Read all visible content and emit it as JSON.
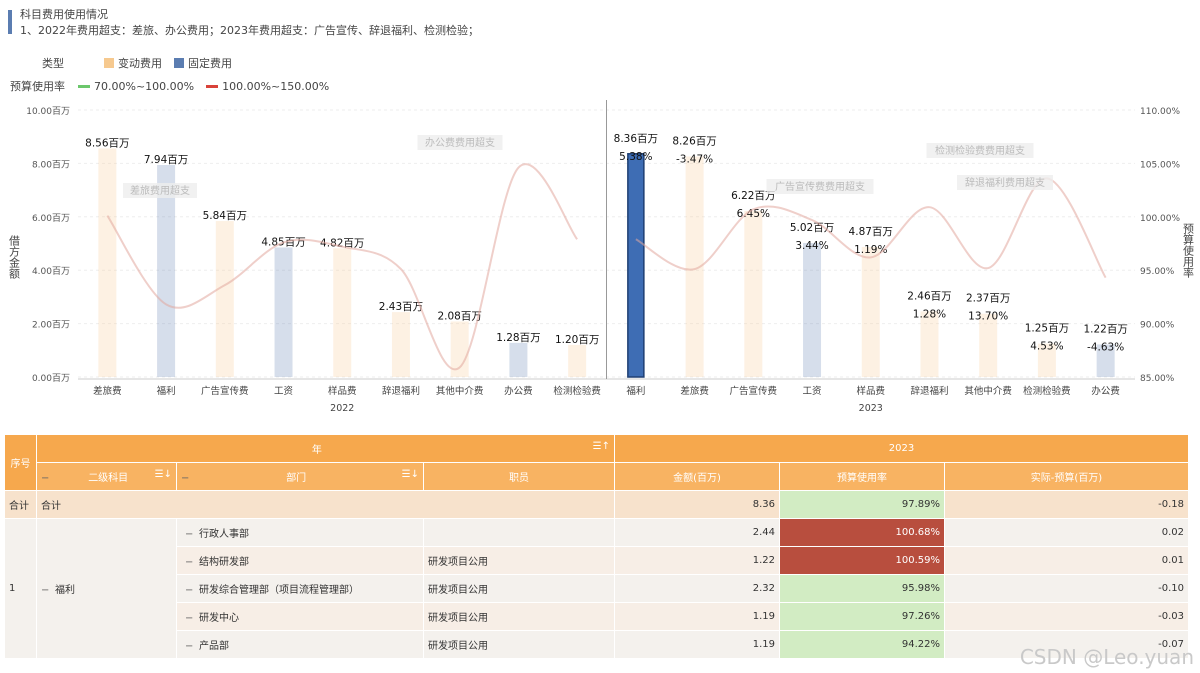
{
  "header": {
    "title": "科目费用使用情况",
    "subtitle": "1、2022年费用超支：差旅、办公费用；2023年费用超支：广告宣传、辞退福利、检测检验；"
  },
  "legend": {
    "type_label": "类型",
    "type_items": [
      {
        "label": "变动费用",
        "color": "#f6c98f"
      },
      {
        "label": "固定费用",
        "color": "#5b7db1"
      }
    ],
    "rate_label": "预算使用率",
    "rate_items": [
      {
        "label": "70.00%~100.00%",
        "color": "#6cc76c"
      },
      {
        "label": "100.00%~150.00%",
        "color": "#d9423a"
      }
    ]
  },
  "chart_data": {
    "type": "bar",
    "ylabel": "借方金额",
    "y2label": "预算使用率",
    "ylim": [
      0,
      10
    ],
    "y2lim": [
      85,
      110
    ],
    "yticks": [
      "0.00百万",
      "2.00百万",
      "4.00百万",
      "6.00百万",
      "8.00百万",
      "10.00百万"
    ],
    "y2ticks": [
      "85.00%",
      "90.00%",
      "95.00%",
      "100.00%",
      "105.00%",
      "110.00%"
    ],
    "groups": [
      {
        "name": "2022",
        "bars": [
          {
            "category": "差旅费",
            "value": 8.56,
            "label": "8.56百万",
            "kind": "变动费用",
            "rate": 100.1
          },
          {
            "category": "福利",
            "value": 7.94,
            "label": "7.94百万",
            "kind": "固定费用",
            "rate": 91.8
          },
          {
            "category": "广告宣传费",
            "value": 5.84,
            "label": "5.84百万",
            "kind": "变动费用",
            "rate": 93.6
          },
          {
            "category": "工资",
            "value": 4.85,
            "label": "4.85百万",
            "kind": "固定费用",
            "rate": 97.6
          },
          {
            "category": "样品费",
            "value": 4.82,
            "label": "4.82百万",
            "kind": "变动费用",
            "rate": 97.2
          },
          {
            "category": "辞退福利",
            "value": 2.43,
            "label": "2.43百万",
            "kind": "变动费用",
            "rate": 95.1
          },
          {
            "category": "其他中介费",
            "value": 2.08,
            "label": "2.08百万",
            "kind": "变动费用",
            "rate": 85.9
          },
          {
            "category": "办公费",
            "value": 1.28,
            "label": "1.28百万",
            "kind": "固定费用",
            "rate": 104.6
          },
          {
            "category": "检测检验费",
            "value": 1.2,
            "label": "1.20百万",
            "kind": "变动费用",
            "rate": 97.9
          }
        ],
        "annotations": [
          "差旅费用超支",
          "办公费费用超支"
        ]
      },
      {
        "name": "2023",
        "bars": [
          {
            "category": "福利",
            "value": 8.36,
            "label": "8.36百万",
            "pct": "5.38%",
            "kind": "固定费用",
            "rate": 97.9,
            "highlight": true
          },
          {
            "category": "差旅费",
            "value": 8.26,
            "label": "8.26百万",
            "pct": "-3.47%",
            "kind": "变动费用",
            "rate": 95.1
          },
          {
            "category": "广告宣传费",
            "value": 6.22,
            "label": "6.22百万",
            "pct": "6.45%",
            "kind": "变动费用",
            "rate": 100.7
          },
          {
            "category": "工资",
            "value": 5.02,
            "label": "5.02百万",
            "pct": "3.44%",
            "kind": "固定费用",
            "rate": 99.7
          },
          {
            "category": "样品费",
            "value": 4.87,
            "label": "4.87百万",
            "pct": "1.19%",
            "kind": "变动费用",
            "rate": 96.2
          },
          {
            "category": "辞退福利",
            "value": 2.46,
            "label": "2.46百万",
            "pct": "1.28%",
            "kind": "变动费用",
            "rate": 100.9
          },
          {
            "category": "其他中介费",
            "value": 2.37,
            "label": "2.37百万",
            "pct": "13.70%",
            "kind": "变动费用",
            "rate": 95.2
          },
          {
            "category": "检测检验费",
            "value": 1.25,
            "label": "1.25百万",
            "pct": "4.53%",
            "kind": "变动费用",
            "rate": 103.6
          },
          {
            "category": "办公费",
            "value": 1.22,
            "label": "1.22百万",
            "pct": "-4.63%",
            "kind": "固定费用",
            "rate": 94.3
          }
        ],
        "annotations": [
          "广告宣传费费用超支",
          "检测检验费费用超支",
          "辞退福利费用超支"
        ]
      }
    ]
  },
  "table": {
    "top_headers": {
      "seq": "序号",
      "year": "年",
      "year_val": "2023"
    },
    "sub_headers": {
      "subject": "二级科目",
      "dept": "部门",
      "staff": "职员",
      "amount": "金额(百万)",
      "rate": "预算使用率",
      "diff": "实际-预算(百万)"
    },
    "total": {
      "seq": "合计",
      "subject": "合计",
      "amount": "8.36",
      "rate": "97.89%",
      "diff": "-0.18"
    },
    "group": {
      "seq": "1",
      "subject": "福利"
    },
    "rows": [
      {
        "dept": "行政人事部",
        "staff": "",
        "amount": "2.44",
        "rate": "100.68%",
        "diff": "0.02",
        "status": "bad"
      },
      {
        "dept": "结构研发部",
        "staff": "研发项目公用",
        "amount": "1.22",
        "rate": "100.59%",
        "diff": "0.01",
        "status": "bad"
      },
      {
        "dept": "研发综合管理部（项目流程管理部）",
        "staff": "研发项目公用",
        "amount": "2.32",
        "rate": "95.98%",
        "diff": "-0.10",
        "status": "good"
      },
      {
        "dept": "研发中心",
        "staff": "研发项目公用",
        "amount": "1.19",
        "rate": "97.26%",
        "diff": "-0.03",
        "status": "good"
      },
      {
        "dept": "产品部",
        "staff": "研发项目公用",
        "amount": "1.19",
        "rate": "94.22%",
        "diff": "-0.07",
        "status": "good"
      }
    ]
  },
  "watermark": "CSDN @Leo.yuan"
}
